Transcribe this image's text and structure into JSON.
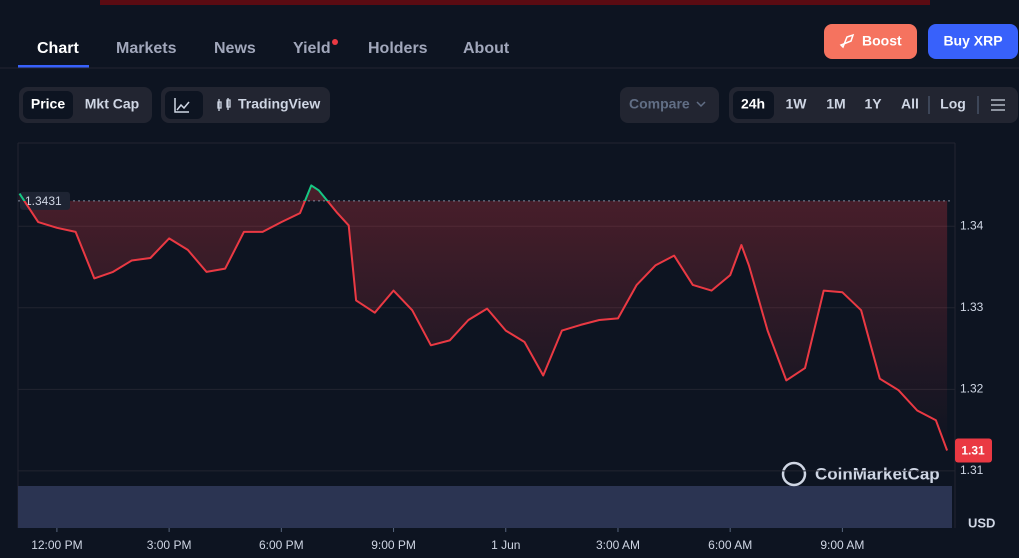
{
  "nav": {
    "tabs": [
      "Chart",
      "Markets",
      "News",
      "Yield",
      "Holders",
      "About"
    ],
    "boost": "Boost",
    "buy": "Buy XRP"
  },
  "toolbar": {
    "price": "Price",
    "mkt_cap": "Mkt Cap",
    "tradingview": "TradingView",
    "compare": "Compare",
    "ranges": [
      "24h",
      "1W",
      "1M",
      "1Y",
      "All"
    ],
    "log": "Log"
  },
  "chart_data": {
    "type": "line",
    "color": "#ea3943",
    "up_color": "#16c784",
    "x": [
      -1.0,
      -0.5,
      0,
      0.5,
      1.0,
      1.5,
      2.0,
      2.5,
      3.0,
      3.5,
      4.0,
      4.5,
      5.0,
      5.5,
      6.0,
      6.5,
      6.8,
      7.0,
      7.5,
      7.8,
      8.0,
      8.5,
      9.0,
      9.5,
      10.0,
      10.5,
      11.0,
      11.5,
      12.0,
      12.5,
      13.0,
      13.5,
      14.0,
      14.5,
      15.0,
      15.5,
      16.0,
      16.5,
      17.0,
      17.5,
      18.0,
      18.3,
      18.5,
      19.0,
      19.5,
      20.0,
      20.5,
      21.0,
      21.5,
      22.0,
      22.5,
      23.0,
      23.5,
      23.8
    ],
    "values": [
      1.344,
      1.3405,
      1.3398,
      1.3393,
      1.3336,
      1.3344,
      1.3358,
      1.3361,
      1.3385,
      1.3371,
      1.3344,
      1.3348,
      1.3393,
      1.3393,
      1.3405,
      1.3416,
      1.345,
      1.3444,
      1.3416,
      1.3401,
      1.3309,
      1.3294,
      1.3321,
      1.3297,
      1.3254,
      1.326,
      1.3285,
      1.3299,
      1.3272,
      1.3258,
      1.3217,
      1.3272,
      1.3279,
      1.3285,
      1.3287,
      1.3328,
      1.3352,
      1.3364,
      1.3328,
      1.3321,
      1.334,
      1.3377,
      1.3352,
      1.3272,
      1.3211,
      1.3226,
      1.3321,
      1.3319,
      1.3297,
      1.3213,
      1.3199,
      1.3174,
      1.3162,
      1.3125
    ],
    "xlim": [
      -1.04,
      23.93
    ],
    "xticks": [
      {
        "value": 0,
        "label": "12:00 PM"
      },
      {
        "value": 3,
        "label": "3:00 PM"
      },
      {
        "value": 6,
        "label": "6:00 PM"
      },
      {
        "value": 9,
        "label": "9:00 PM"
      },
      {
        "value": 12,
        "label": "1 Jun"
      },
      {
        "value": 15,
        "label": "3:00 AM"
      },
      {
        "value": 18,
        "label": "6:00 AM"
      },
      {
        "value": 21,
        "label": "9:00 AM"
      }
    ],
    "ylim": [
      1.303,
      1.3502
    ],
    "yticks": [
      1.31,
      1.32,
      1.33,
      1.34
    ],
    "grid": true,
    "reference": 1.3431,
    "current": 1.31,
    "ylabel": "USD",
    "watermark": "CoinMarketCap"
  }
}
